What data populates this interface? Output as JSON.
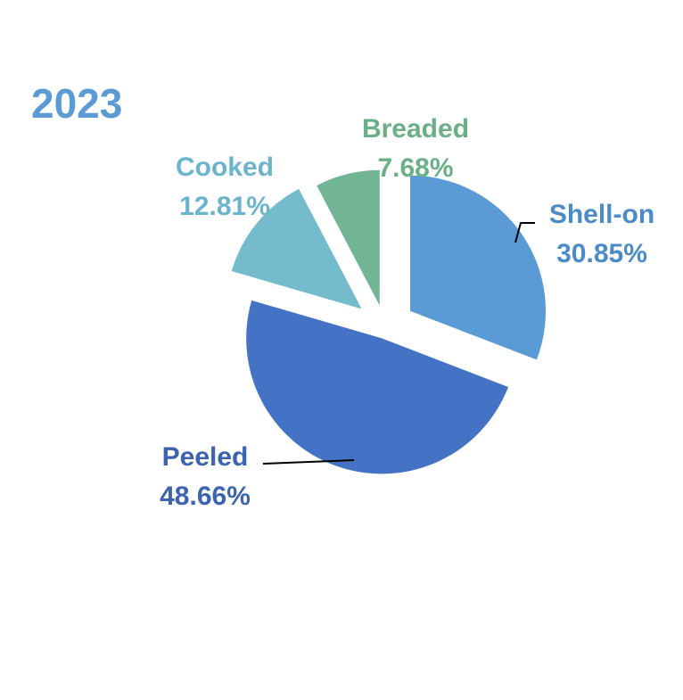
{
  "chart_data": {
    "type": "pie",
    "title": "2023",
    "title_color": "#5b9bd5",
    "start": "12 o'clock, clockwise, exploded slices",
    "slices": [
      {
        "label": "Shell-on",
        "value": 30.85,
        "value_text": "30.85%",
        "color": "#5b9bd5",
        "text_color": "#4a8bc8"
      },
      {
        "label": "Peeled",
        "value": 48.66,
        "value_text": "48.66%",
        "color": "#4472c4",
        "text_color": "#3b63b0"
      },
      {
        "label": "Cooked",
        "value": 12.81,
        "value_text": "12.81%",
        "color": "#74bccd",
        "text_color": "#6ab4cc"
      },
      {
        "label": "Breaded",
        "value": 7.68,
        "value_text": "7.68%",
        "color": "#72b594",
        "text_color": "#6aaf86"
      }
    ]
  }
}
